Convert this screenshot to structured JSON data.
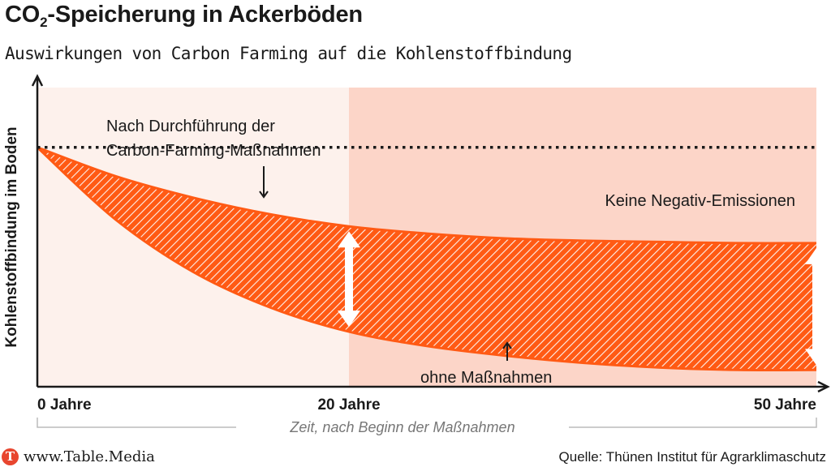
{
  "title": {
    "prefix": "CO",
    "subscript": "2",
    "suffix": "-Speicherung in Ackerböden"
  },
  "subtitle": "Auswirkungen von Carbon Farming auf die Kohlenstoffbindung",
  "footer": {
    "brand_logo": "T",
    "brand": "www.Table.Media",
    "source": "Quelle: Thünen Institut für Agrarklimaschutz"
  },
  "colors": {
    "accent": "#ff5a14",
    "area_light": "#fdf1ec",
    "area_shaded": "#fcd5c8",
    "white_arrow": "#ffffff"
  },
  "chart_data": {
    "type": "area",
    "ylabel": "Kohlenstoffbindung im Boden",
    "xlabel": "Zeit, nach Beginn der Maßnahmen",
    "x_ticks": [
      {
        "value": 0,
        "label": "0 Jahre"
      },
      {
        "value": 20,
        "label": "20 Jahre"
      },
      {
        "value": 50,
        "label": "50 Jahre"
      }
    ],
    "shaded_region": {
      "from": 20,
      "to": 50
    },
    "reference_line": {
      "y": 1.0,
      "style": "dotted"
    },
    "series": [
      {
        "x": [
          0,
          5,
          10,
          15,
          20,
          25,
          30,
          35,
          40,
          45,
          50
        ],
        "values": [
          1.0,
          0.88,
          0.79,
          0.72,
          0.67,
          0.64,
          0.62,
          0.61,
          0.605,
          0.6,
          0.6
        ]
      },
      {
        "x": [
          0,
          5,
          10,
          15,
          20,
          25,
          30,
          35,
          40,
          45,
          50
        ],
        "values": [
          1.0,
          0.7,
          0.48,
          0.33,
          0.23,
          0.17,
          0.13,
          0.1,
          0.08,
          0.07,
          0.07
        ]
      }
    ],
    "annotations": [
      {
        "id": "top",
        "lines": [
          "Nach Durchführung der",
          "Carbon-Farming-Maßnahmen"
        ]
      },
      {
        "id": "right",
        "lines": [
          "Keine Negativ-Emissionen"
        ]
      },
      {
        "id": "bottom",
        "lines": [
          "ohne Maßnahmen"
        ]
      }
    ],
    "ylim": [
      0,
      1.25
    ],
    "xlim": [
      0,
      50
    ],
    "grid": false,
    "legend": "none"
  }
}
